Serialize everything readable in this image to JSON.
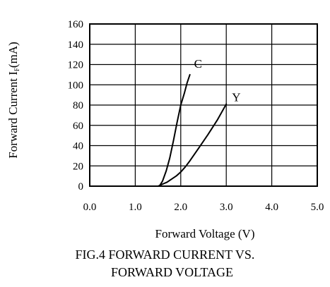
{
  "chart_data": {
    "type": "line",
    "title": "",
    "xlabel": "Forward Voltage (V)",
    "ylabel": "Forward Current I",
    "ylabel_sub": "F",
    "ylabel_unit": "(mA)",
    "xlim": [
      0,
      5
    ],
    "ylim": [
      0,
      160
    ],
    "x_ticks": [
      0,
      1,
      2,
      3,
      4,
      5
    ],
    "x_tick_labels": [
      "0.0",
      "1.0",
      "2.0",
      "3.0",
      "4.0",
      "5.0"
    ],
    "y_ticks": [
      0,
      20,
      40,
      60,
      80,
      100,
      120,
      140,
      160
    ],
    "y_tick_labels": [
      "0",
      "20",
      "40",
      "60",
      "80",
      "100",
      "120",
      "140",
      "160"
    ],
    "grid": true,
    "series": [
      {
        "name": "C",
        "x": [
          1.53,
          1.6,
          1.68,
          1.76,
          1.84,
          1.92,
          2.0,
          2.08,
          2.14,
          2.2
        ],
        "y": [
          0,
          5,
          15,
          28,
          45,
          63,
          80,
          92,
          102,
          110
        ]
      },
      {
        "name": "Y",
        "x": [
          1.5,
          1.6,
          1.7,
          1.8,
          1.9,
          2.0,
          2.1,
          2.2,
          2.4,
          2.6,
          2.8,
          3.0
        ],
        "y": [
          0,
          2,
          4,
          7,
          10,
          14,
          19,
          25,
          38,
          51,
          65,
          81
        ]
      }
    ]
  },
  "caption": {
    "line1": "FIG.4 FORWARD CURRENT VS.",
    "line2": "FORWARD VOLTAGE"
  }
}
